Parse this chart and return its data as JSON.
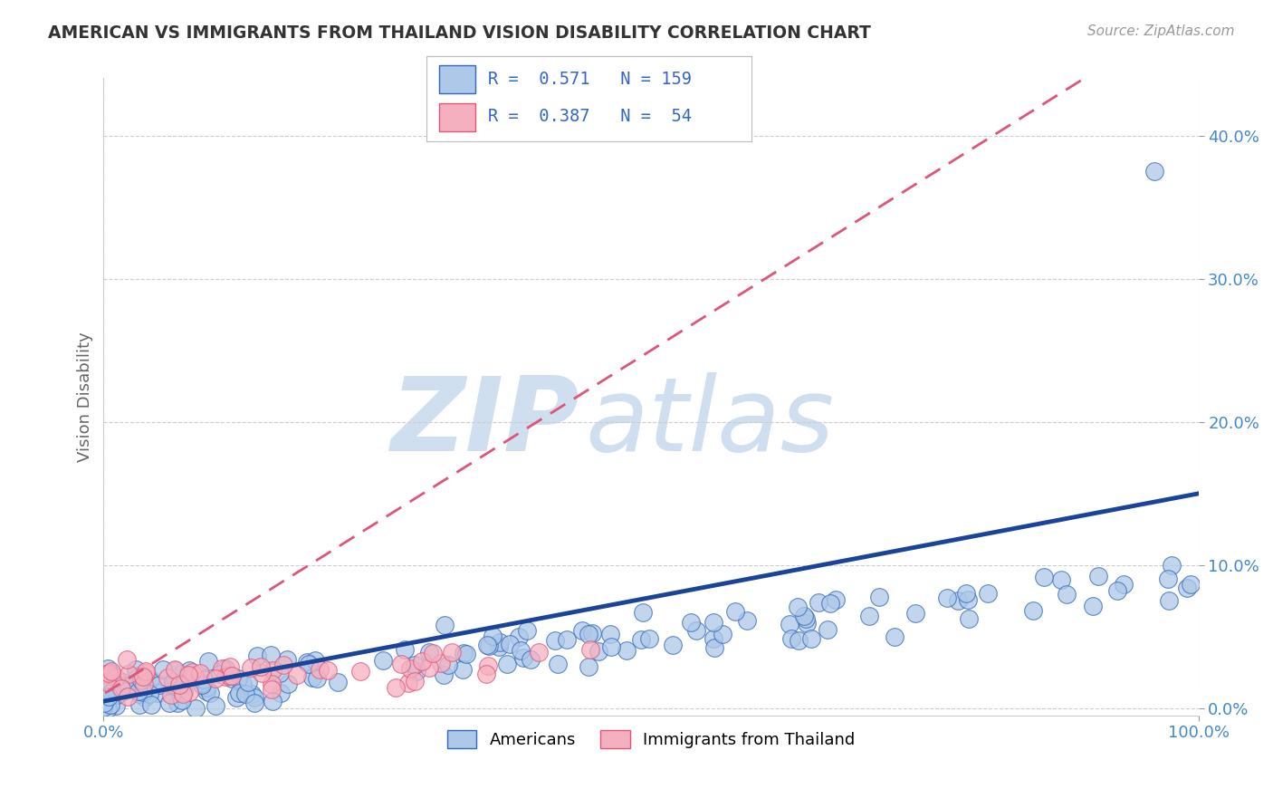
{
  "title": "AMERICAN VS IMMIGRANTS FROM THAILAND VISION DISABILITY CORRELATION CHART",
  "source": "Source: ZipAtlas.com",
  "ylabel": "Vision Disability",
  "xlim": [
    0,
    1.0
  ],
  "ylim": [
    -0.005,
    0.44
  ],
  "yticks": [
    0.0,
    0.1,
    0.2,
    0.3,
    0.4
  ],
  "ytick_labels": [
    "0.0%",
    "10.0%",
    "20.0%",
    "30.0%",
    "40.0%"
  ],
  "americans_R": 0.571,
  "americans_N": 159,
  "thailand_R": 0.387,
  "thailand_N": 54,
  "blue_fill": "#adc8e8",
  "blue_edge": "#3366bb",
  "blue_line": "#1a4499",
  "pink_fill": "#f5b0c0",
  "pink_edge": "#dd5577",
  "pink_line": "#dd5577",
  "watermark_zip": "ZIP",
  "watermark_atlas": "atlas",
  "watermark_color": "#d0dff0",
  "title_color": "#333333",
  "axis_tick_color": "#4488cc",
  "legend_text_color": "#3366cc",
  "background_color": "#ffffff",
  "grid_color": "#cccccc"
}
